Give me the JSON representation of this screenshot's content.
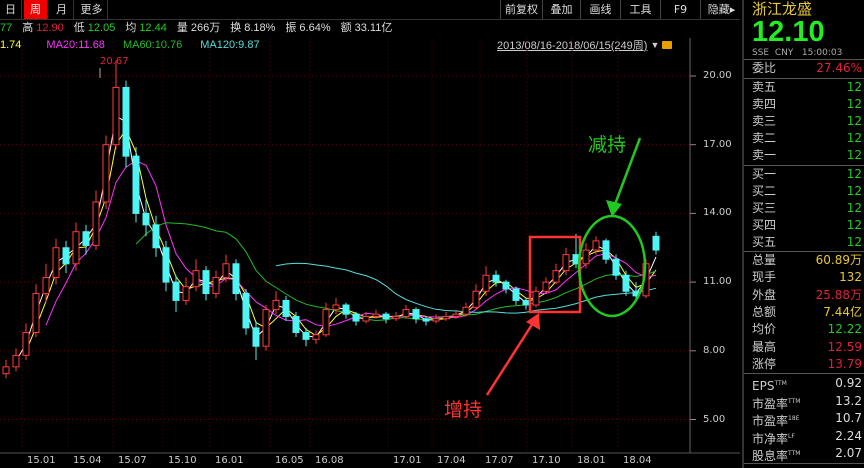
{
  "period_tabs": [
    {
      "label": "日",
      "active": false
    },
    {
      "label": "周",
      "active": true
    },
    {
      "label": "月",
      "active": false
    },
    {
      "label": "更多",
      "active": false
    }
  ],
  "toolbar": [
    "前复权",
    "叠加",
    "画线",
    "工具",
    "F9",
    "隐藏▸"
  ],
  "quote_line": {
    "close_partial": "77",
    "high_label": "高",
    "high": "12.90",
    "low_label": "低",
    "low": "12.05",
    "avg_label": "均",
    "avg": "12.44",
    "vol_label": "量",
    "vol": "266万",
    "turnover_label": "换",
    "turnover": "8.18%",
    "amp_label": "振",
    "amp": "6.64%",
    "amount_label": "额",
    "amount": "33.11亿"
  },
  "ma_line": {
    "ma10_partial": "1.74",
    "ma20": "MA20:11.68",
    "ma60": "MA60:10.76",
    "ma120": "MA120:9.87"
  },
  "range_label": "2013/08/16-2018/06/15(249周)",
  "colors": {
    "up": "#ff3c3c",
    "down": "#4ff5f5",
    "ma5": "#ffffff",
    "ma10": "#ffff33",
    "ma20": "#ff33ff",
    "ma60": "#22bb22",
    "ma120": "#55dddd",
    "grid": "#5a0000"
  },
  "annotations": {
    "increase": "增持",
    "decrease": "减持",
    "peak": "20.67"
  },
  "chart_data": {
    "type": "candlestick",
    "y_ticks": [
      "20.00",
      "17.00",
      "14.00",
      "11.00",
      "8.00",
      "5.00"
    ],
    "ylim": [
      3.6,
      21.4
    ],
    "x_ticks": [
      "15.01",
      "15.04",
      "15.07",
      "15.10",
      "16.01",
      "16.05",
      "16.08",
      "17.01",
      "17.04",
      "17.07",
      "17.10",
      "18.01",
      "18.04"
    ],
    "candles": [
      [
        7.0,
        7.6,
        6.8,
        7.3
      ],
      [
        7.3,
        8.1,
        7.1,
        7.8
      ],
      [
        7.8,
        9.2,
        7.6,
        8.8
      ],
      [
        8.8,
        10.9,
        8.6,
        10.5
      ],
      [
        10.5,
        11.8,
        10.1,
        11.2
      ],
      [
        11.2,
        12.9,
        10.9,
        12.5
      ],
      [
        12.5,
        12.8,
        11.4,
        11.8
      ],
      [
        11.8,
        13.6,
        11.5,
        13.2
      ],
      [
        13.2,
        13.5,
        12.2,
        12.6
      ],
      [
        12.6,
        15.0,
        12.4,
        14.5
      ],
      [
        14.5,
        17.4,
        14.2,
        17.0
      ],
      [
        17.0,
        20.67,
        16.8,
        19.5
      ],
      [
        19.5,
        19.8,
        16.0,
        16.5
      ],
      [
        16.5,
        16.9,
        13.6,
        14.0
      ],
      [
        14.0,
        14.6,
        13.0,
        13.5
      ],
      [
        13.5,
        13.9,
        12.1,
        12.5
      ],
      [
        12.5,
        12.8,
        10.6,
        11.0
      ],
      [
        11.0,
        11.3,
        9.7,
        10.2
      ],
      [
        10.2,
        11.2,
        10.0,
        10.8
      ],
      [
        10.8,
        12.0,
        10.6,
        11.5
      ],
      [
        11.5,
        11.7,
        10.2,
        10.5
      ],
      [
        10.5,
        11.5,
        10.3,
        11.2
      ],
      [
        11.2,
        12.2,
        11.0,
        11.8
      ],
      [
        11.8,
        12.0,
        10.2,
        10.5
      ],
      [
        10.5,
        10.7,
        8.7,
        9.0
      ],
      [
        9.0,
        9.3,
        7.6,
        8.2
      ],
      [
        8.2,
        10.0,
        8.0,
        9.8
      ],
      [
        9.8,
        10.6,
        9.6,
        10.2
      ],
      [
        10.2,
        10.4,
        9.3,
        9.5
      ],
      [
        9.5,
        9.7,
        8.6,
        8.8
      ],
      [
        8.8,
        9.0,
        8.2,
        8.5
      ],
      [
        8.5,
        8.9,
        8.3,
        8.7
      ],
      [
        8.7,
        10.1,
        8.6,
        9.8
      ],
      [
        9.8,
        10.3,
        9.6,
        10.0
      ],
      [
        10.0,
        10.1,
        9.4,
        9.6
      ],
      [
        9.6,
        9.7,
        9.1,
        9.3
      ],
      [
        9.3,
        9.7,
        9.2,
        9.5
      ],
      [
        9.5,
        9.8,
        9.4,
        9.6
      ],
      [
        9.6,
        9.7,
        9.2,
        9.4
      ],
      [
        9.4,
        9.7,
        9.3,
        9.5
      ],
      [
        9.5,
        10.0,
        9.4,
        9.8
      ],
      [
        9.8,
        9.9,
        9.2,
        9.4
      ],
      [
        9.4,
        9.5,
        9.1,
        9.3
      ],
      [
        9.3,
        9.6,
        9.2,
        9.4
      ],
      [
        9.4,
        9.7,
        9.3,
        9.5
      ],
      [
        9.5,
        9.8,
        9.4,
        9.6
      ],
      [
        9.6,
        10.1,
        9.5,
        9.9
      ],
      [
        9.9,
        10.9,
        9.8,
        10.6
      ],
      [
        10.6,
        11.7,
        10.4,
        11.3
      ],
      [
        11.3,
        11.5,
        10.8,
        11.0
      ],
      [
        11.0,
        11.1,
        10.5,
        10.7
      ],
      [
        10.7,
        10.8,
        10.0,
        10.2
      ],
      [
        10.2,
        10.3,
        9.8,
        10.0
      ],
      [
        10.0,
        10.8,
        9.9,
        10.6
      ],
      [
        10.6,
        11.2,
        10.5,
        11.0
      ],
      [
        11.0,
        11.8,
        10.9,
        11.5
      ],
      [
        11.5,
        12.5,
        11.3,
        12.2
      ],
      [
        12.2,
        13.1,
        11.6,
        11.8
      ],
      [
        11.8,
        12.7,
        11.6,
        12.4
      ],
      [
        12.4,
        13.0,
        12.2,
        12.8
      ],
      [
        12.8,
        12.9,
        11.8,
        12.0
      ],
      [
        12.0,
        12.2,
        11.1,
        11.3
      ],
      [
        11.3,
        11.5,
        10.4,
        10.6
      ],
      [
        10.6,
        11.0,
        10.2,
        10.4
      ],
      [
        10.4,
        12.0,
        10.3,
        11.8
      ],
      [
        13.0,
        13.2,
        12.2,
        12.4
      ]
    ]
  },
  "panel": {
    "name": "浙江龙盛",
    "price": "12.10",
    "meta": "SSE  CNY   15:00:03",
    "weibi": {
      "k": "委比",
      "v": "27.46%"
    },
    "asks": [
      {
        "k": "卖五",
        "v": "12"
      },
      {
        "k": "卖四",
        "v": "12"
      },
      {
        "k": "卖三",
        "v": "12"
      },
      {
        "k": "卖二",
        "v": "12"
      },
      {
        "k": "卖一",
        "v": "12"
      }
    ],
    "bids": [
      {
        "k": "买一",
        "v": "12"
      },
      {
        "k": "买二",
        "v": "12"
      },
      {
        "k": "买三",
        "v": "12"
      },
      {
        "k": "买四",
        "v": "12"
      },
      {
        "k": "买五",
        "v": "12"
      }
    ],
    "stats": [
      {
        "k": "总量",
        "v": "60.89万",
        "c": "#e8c832"
      },
      {
        "k": "现手",
        "v": "132",
        "c": "#e8c832"
      },
      {
        "k": "外盘",
        "v": "25.88万",
        "c": "#e0203c"
      },
      {
        "k": "总额",
        "v": "7.44亿",
        "c": "#e8c832"
      },
      {
        "k": "均价",
        "v": "12.22",
        "c": "#22cc22"
      },
      {
        "k": "最高",
        "v": "12.59",
        "c": "#e0203c"
      },
      {
        "k": "涨停",
        "v": "13.79",
        "c": "#e0203c"
      }
    ],
    "fund": [
      {
        "k": "EPS",
        "s": "TTM",
        "v": "0.92"
      },
      {
        "k": "市盈率",
        "s": "TTM",
        "v": "13.2"
      },
      {
        "k": "市盈率",
        "s": "18E",
        "v": "10.7"
      },
      {
        "k": "市净率",
        "s": "LF",
        "v": "2.24"
      },
      {
        "k": "股息率",
        "s": "TTM",
        "v": "2.07"
      }
    ]
  }
}
